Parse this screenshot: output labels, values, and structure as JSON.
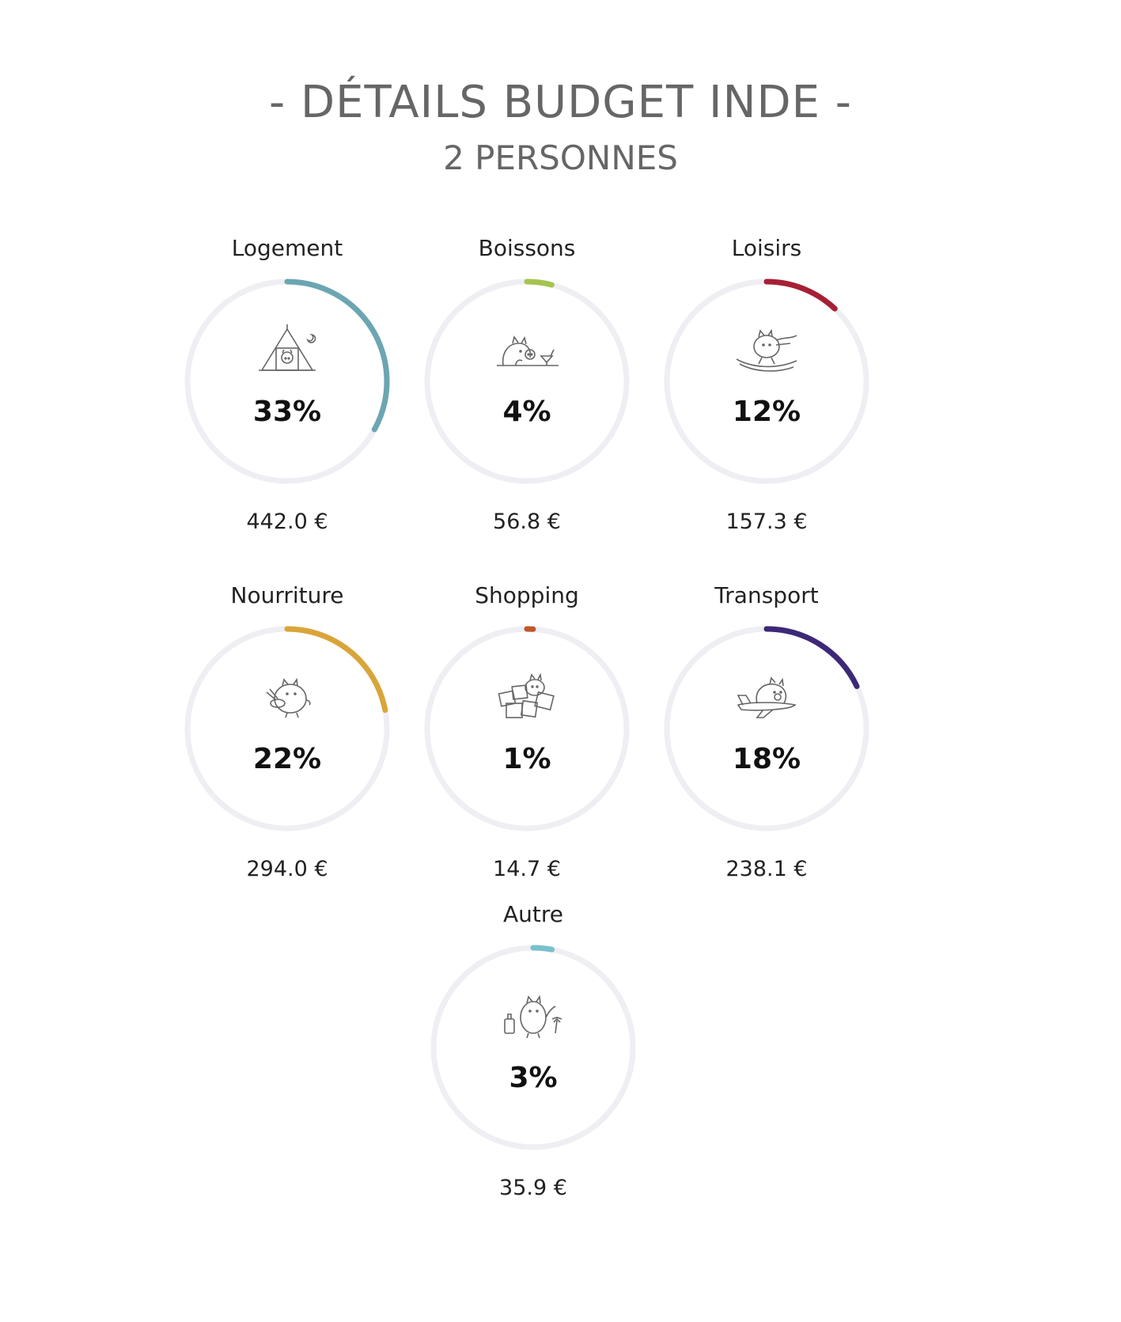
{
  "header": {
    "title": "- DÉTAILS BUDGET INDE -",
    "subtitle": "2 PERSONNES"
  },
  "chart_data": {
    "type": "pie",
    "track_color": "#EEEEF3",
    "categories": [
      {
        "label": "Logement",
        "percent": 33,
        "percent_label": "33%",
        "amount": "442.0 €",
        "color": "#6BA6B2",
        "icon": "tent-pig-icon"
      },
      {
        "label": "Boissons",
        "percent": 4,
        "percent_label": "4%",
        "amount": "56.8 €",
        "color": "#A5C451",
        "icon": "drinking-pig-icon"
      },
      {
        "label": "Loisirs",
        "percent": 12,
        "percent_label": "12%",
        "amount": "157.3 €",
        "color": "#A62035",
        "icon": "skiing-pig-icon"
      },
      {
        "label": "Nourriture",
        "percent": 22,
        "percent_label": "22%",
        "amount": "294.0 €",
        "color": "#D9A53A",
        "icon": "eating-pig-icon"
      },
      {
        "label": "Shopping",
        "percent": 1,
        "percent_label": "1%",
        "amount": "14.7 €",
        "color": "#C0582B",
        "icon": "shopping-pig-icon"
      },
      {
        "label": "Transport",
        "percent": 18,
        "percent_label": "18%",
        "amount": "238.1 €",
        "color": "#3D2878",
        "icon": "plane-pig-icon"
      },
      {
        "label": "Autre",
        "percent": 3,
        "percent_label": "3%",
        "amount": "35.9 €",
        "color": "#79C0CD",
        "icon": "travel-pig-icon"
      }
    ]
  }
}
